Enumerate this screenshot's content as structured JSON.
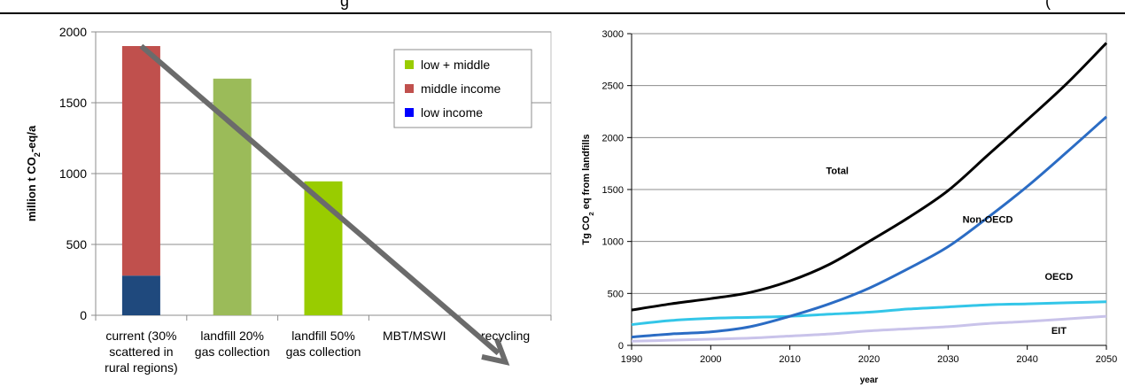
{
  "header_fragment_left": "g",
  "header_fragment_right": "(",
  "chart_data": [
    {
      "type": "bar",
      "stacked": true,
      "ylabel": "million t CO₂-eq/a",
      "ylim": [
        0,
        2000
      ],
      "yticks": [
        "0",
        "500",
        "1000",
        "1500",
        "2000"
      ],
      "yticks_values": [
        0,
        500,
        1000,
        1500,
        2000
      ],
      "categories": [
        [
          "current (30%",
          "scattered in",
          "rural regions)"
        ],
        [
          "landfill 20%",
          "gas collection"
        ],
        [
          "landfill 50%",
          "gas collection"
        ],
        [
          "MBT/MSWI"
        ],
        [
          "recycling"
        ]
      ],
      "series": [
        {
          "name": "low income",
          "color": "#1f497d",
          "values": [
            280,
            0,
            0,
            0,
            0
          ]
        },
        {
          "name": "middle income",
          "color": "#c0504d",
          "values": [
            1620,
            0,
            0,
            0,
            0
          ]
        },
        {
          "name": "low + middle",
          "color": "#9bbb59",
          "values": [
            0,
            1670,
            945,
            0,
            0
          ]
        }
      ],
      "bar_colors_override": {
        "2": "#99cc00"
      },
      "legend": [
        {
          "name": "low + middle",
          "color": "#99cc00"
        },
        {
          "name": "middle income",
          "color": "#c0504d"
        },
        {
          "name": "low income",
          "color": "#0000ff"
        }
      ],
      "legend_position": "top-right",
      "arrow": {
        "from": [
          0,
          1900
        ],
        "to": [
          4.0,
          -330
        ],
        "color": "#6b6b6b"
      },
      "grid": true
    },
    {
      "type": "line",
      "xlabel": "year",
      "ylabel": "Tg CO₂ eq from landfills",
      "xlim": [
        1990,
        2050
      ],
      "ylim": [
        0,
        3000
      ],
      "xticks": [
        "1990",
        "2000",
        "2010",
        "2020",
        "2030",
        "2040",
        "2050"
      ],
      "xticks_values": [
        1990,
        2000,
        2010,
        2020,
        2030,
        2040,
        2050
      ],
      "yticks": [
        "0",
        "500",
        "1000",
        "1500",
        "2000",
        "2500",
        "3000"
      ],
      "yticks_values": [
        0,
        500,
        1000,
        1500,
        2000,
        2500,
        3000
      ],
      "x": [
        1990,
        1995,
        2000,
        2005,
        2010,
        2015,
        2020,
        2025,
        2030,
        2035,
        2040,
        2045,
        2050
      ],
      "series": [
        {
          "name": "Total",
          "color": "#000000",
          "values": [
            340,
            400,
            450,
            510,
            620,
            780,
            1000,
            1230,
            1490,
            1830,
            2170,
            2520,
            2910
          ]
        },
        {
          "name": "Non-OECD",
          "color": "#2b6cc4",
          "values": [
            80,
            110,
            130,
            180,
            280,
            400,
            550,
            740,
            950,
            1230,
            1530,
            1860,
            2200
          ]
        },
        {
          "name": "OECD",
          "color": "#33c6e8",
          "values": [
            200,
            240,
            260,
            270,
            280,
            300,
            320,
            350,
            370,
            390,
            400,
            410,
            420
          ]
        },
        {
          "name": "EIT",
          "color": "#c9c3ea",
          "values": [
            40,
            50,
            60,
            70,
            90,
            110,
            140,
            160,
            180,
            210,
            230,
            255,
            280
          ]
        }
      ],
      "annotations": [
        {
          "text": "Total",
          "x": 2016,
          "y": 1650
        },
        {
          "text": "Non-OECD",
          "x": 2035,
          "y": 1180
        },
        {
          "text": "OECD",
          "x": 2044,
          "y": 630
        },
        {
          "text": "EIT",
          "x": 2044,
          "y": 110
        }
      ],
      "grid": true
    }
  ]
}
